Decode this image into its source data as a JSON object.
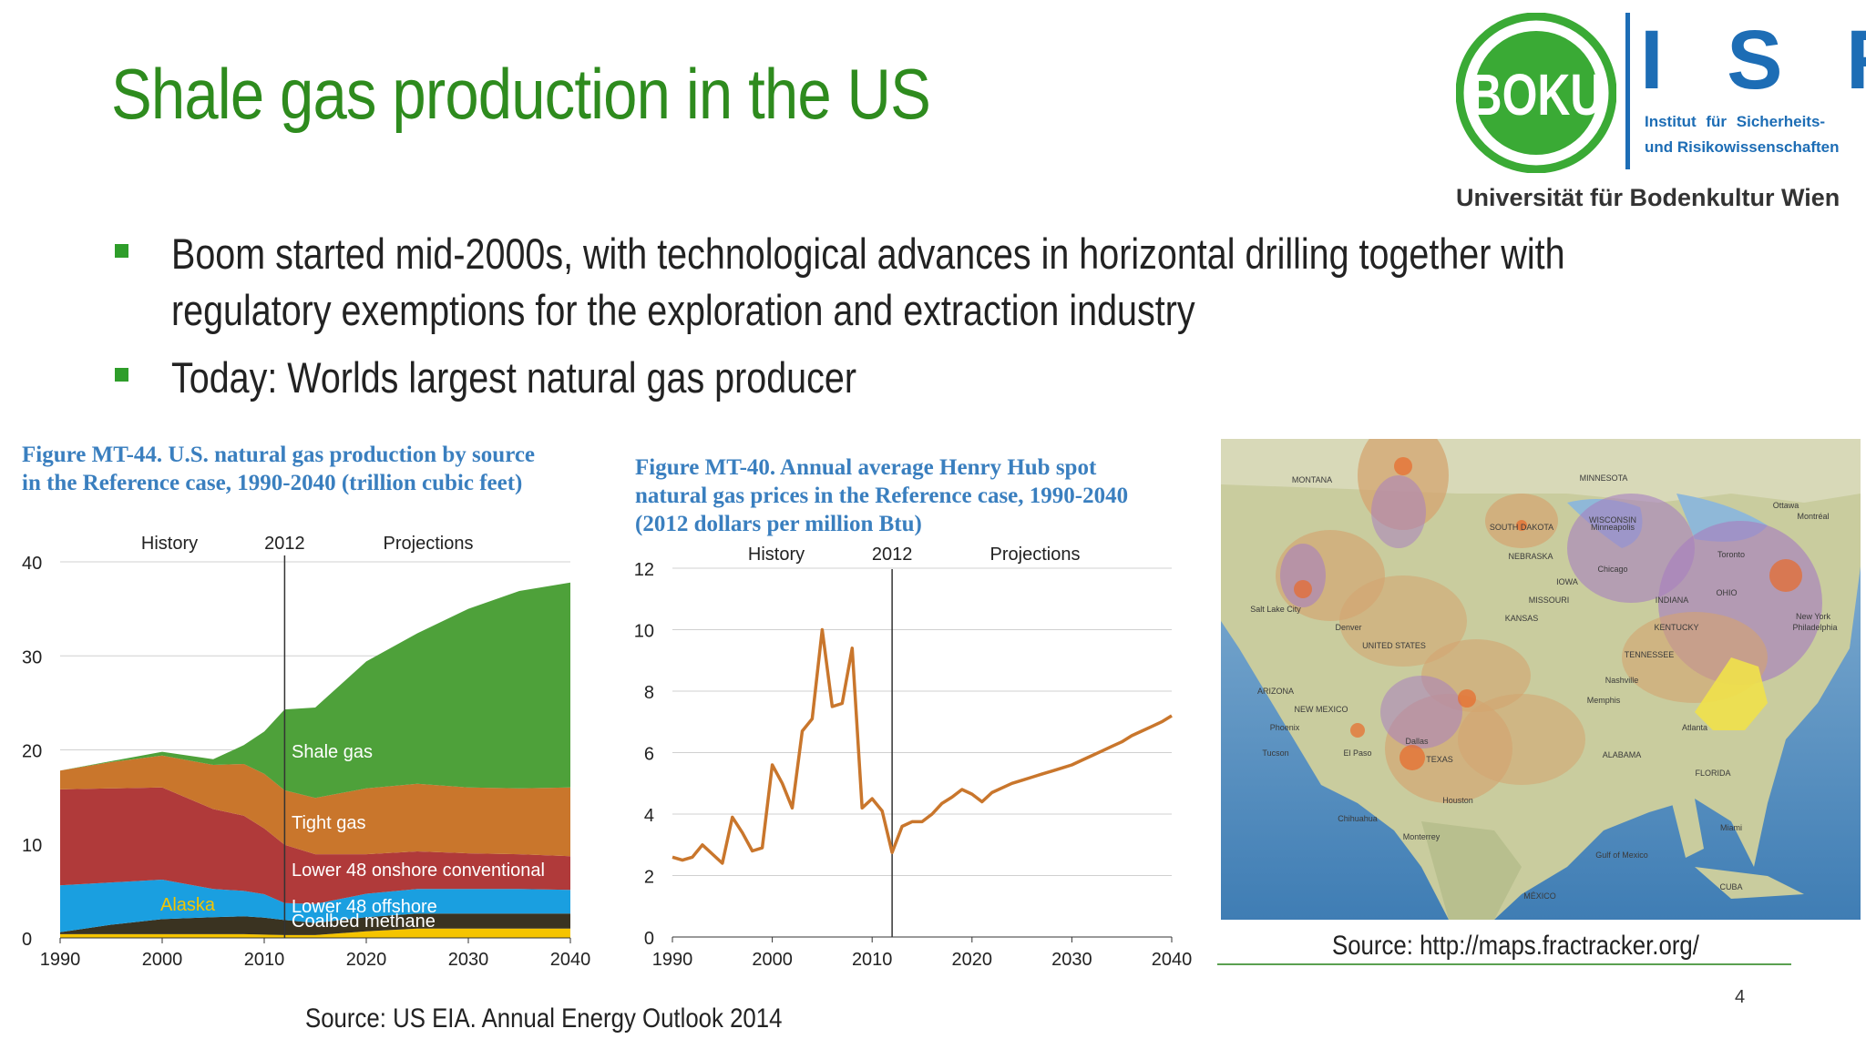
{
  "slide": {
    "title": "Shale gas production in the US",
    "bullets": [
      {
        "lines": [
          "Boom started mid-2000s, with technological advances in horizontal drilling together with",
          "regulatory exemptions for the exploration and extraction industry"
        ]
      },
      {
        "lines": [
          "Today: Worlds largest natural gas producer"
        ]
      }
    ],
    "page_number": "4",
    "map_source": "Source: http://maps.fractracker.org/",
    "eia_source": "Source: US EIA. Annual Energy Outlook 2014",
    "colors": {
      "title": "#2e8b1e",
      "bullet": "#2e9d2a",
      "figure_title": "#3a7fbf",
      "logo_green": "#3aaa35",
      "logo_blue": "#1d6db5"
    }
  },
  "logo": {
    "boku_text": "BOKU",
    "isr_text": "I S R",
    "institute_line1": "Institut für Sicherheits-",
    "institute_line2": "und Risikowissenschaften",
    "university": "Universität für Bodenkultur Wien"
  },
  "map": {
    "labels": [
      "MONTANA",
      "MINNESOTA",
      "WISCONSIN",
      "SOUTH DAKOTA",
      "NEBRASKA",
      "KANSAS",
      "IOWA",
      "INDIANA",
      "OHIO",
      "MISSOURI",
      "ARIZONA",
      "NEW MEXICO",
      "TEXAS",
      "ALABAMA",
      "FLORIDA",
      "KENTUCKY",
      "TENNESSEE",
      "Chicago",
      "Toronto",
      "Montréal",
      "Ottawa",
      "New York",
      "Philadelphia",
      "Dallas",
      "Houston",
      "Chihuahua",
      "Monterrey",
      "Miami",
      "Atlanta",
      "Memphis",
      "Denver",
      "Phoenix",
      "Tucson",
      "El Paso",
      "Salt Lake City",
      "Minneapolis",
      "Nashville",
      "Gulf of Mexico",
      "UNITED STATES",
      "MÉXICO",
      "CUBA"
    ]
  },
  "chart_data": [
    {
      "type": "area",
      "title": "Figure MT-44. U.S. natural gas production by source in the Reference case, 1990-2040 (trillion cubic feet)",
      "title_lines": [
        "Figure MT-44. U.S. natural gas production by source",
        "in the Reference case, 1990-2040 (trillion cubic feet)"
      ],
      "stacked": true,
      "annotations": [
        "History",
        "2012",
        "Projections"
      ],
      "x": [
        1990,
        1995,
        2000,
        2005,
        2008,
        2010,
        2012,
        2015,
        2020,
        2025,
        2030,
        2035,
        2040
      ],
      "xticks": [
        "1990",
        "2000",
        "2010",
        "2020",
        "2030",
        "2040"
      ],
      "yticks": [
        "0",
        "10",
        "20",
        "30",
        "40"
      ],
      "xlim": [
        1990,
        2040
      ],
      "ylim": [
        0,
        40
      ],
      "grid": true,
      "series": [
        {
          "name": "Alaska",
          "color": "#f5c400",
          "values": [
            0.4,
            0.4,
            0.4,
            0.4,
            0.4,
            0.35,
            0.3,
            0.3,
            0.7,
            1.0,
            1.0,
            1.0,
            1.0
          ]
        },
        {
          "name": "Coalbed methane",
          "color": "#3a3321",
          "values": [
            0.2,
            1.0,
            1.6,
            1.8,
            1.9,
            1.8,
            1.6,
            1.3,
            1.5,
            1.6,
            1.6,
            1.6,
            1.6
          ]
        },
        {
          "name": "Lower 48 offshore",
          "color": "#1a9fe0",
          "values": [
            5.0,
            4.5,
            4.2,
            3.0,
            2.7,
            2.5,
            1.8,
            2.0,
            2.5,
            2.6,
            2.6,
            2.6,
            2.5
          ]
        },
        {
          "name": "Lower 48 onshore conventional",
          "color": "#b03a3a",
          "values": [
            10.2,
            10.0,
            9.8,
            8.5,
            8.0,
            7.0,
            6.2,
            5.3,
            4.2,
            4.0,
            3.8,
            3.7,
            3.6
          ]
        },
        {
          "name": "Tight gas",
          "color": "#c9762c",
          "values": [
            2.0,
            2.8,
            3.4,
            4.7,
            5.5,
            5.8,
            5.8,
            6.0,
            7.0,
            7.2,
            7.0,
            7.0,
            7.3
          ]
        },
        {
          "name": "Shale gas",
          "color": "#4ea13a",
          "values": [
            0.0,
            0.1,
            0.4,
            0.6,
            2.0,
            4.5,
            8.6,
            9.6,
            13.5,
            16.0,
            19.0,
            21.0,
            21.8
          ]
        }
      ]
    },
    {
      "type": "line",
      "title": "Figure MT-40. Annual average Henry Hub spot natural gas prices in the Reference case, 1990-2040 (2012 dollars per million Btu)",
      "title_lines": [
        "Figure MT-40. Annual average Henry Hub spot",
        "natural gas prices in the Reference case, 1990-2040",
        "(2012 dollars per million Btu)"
      ],
      "annotations": [
        "History",
        "2012",
        "Projections"
      ],
      "xticks": [
        "1990",
        "2000",
        "2010",
        "2020",
        "2030",
        "2040"
      ],
      "yticks": [
        "0",
        "2",
        "4",
        "6",
        "8",
        "10",
        "12"
      ],
      "xlim": [
        1990,
        2040
      ],
      "ylim": [
        0,
        12
      ],
      "grid": true,
      "series": [
        {
          "color": "#c9762c",
          "x": [
            1990,
            1991,
            1992,
            1993,
            1994,
            1995,
            1996,
            1997,
            1998,
            1999,
            2000,
            2001,
            2002,
            2003,
            2004,
            2005,
            2006,
            2007,
            2008,
            2009,
            2010,
            2011,
            2012,
            2013,
            2014,
            2015,
            2016,
            2017,
            2018,
            2019,
            2020,
            2021,
            2022,
            2023,
            2024,
            2025,
            2026,
            2027,
            2028,
            2029,
            2030,
            2031,
            2032,
            2033,
            2034,
            2035,
            2036,
            2037,
            2038,
            2039,
            2040
          ],
          "values": [
            2.6,
            2.5,
            2.6,
            3.0,
            2.7,
            2.4,
            3.9,
            3.4,
            2.8,
            2.9,
            5.6,
            5.0,
            4.2,
            6.7,
            7.1,
            10.0,
            7.5,
            7.6,
            9.4,
            4.2,
            4.5,
            4.1,
            2.75,
            3.6,
            3.75,
            3.75,
            4.0,
            4.35,
            4.55,
            4.8,
            4.65,
            4.4,
            4.7,
            4.85,
            5.0,
            5.1,
            5.2,
            5.3,
            5.4,
            5.5,
            5.6,
            5.75,
            5.9,
            6.05,
            6.2,
            6.35,
            6.55,
            6.7,
            6.85,
            7.0,
            7.2
          ]
        }
      ]
    }
  ]
}
